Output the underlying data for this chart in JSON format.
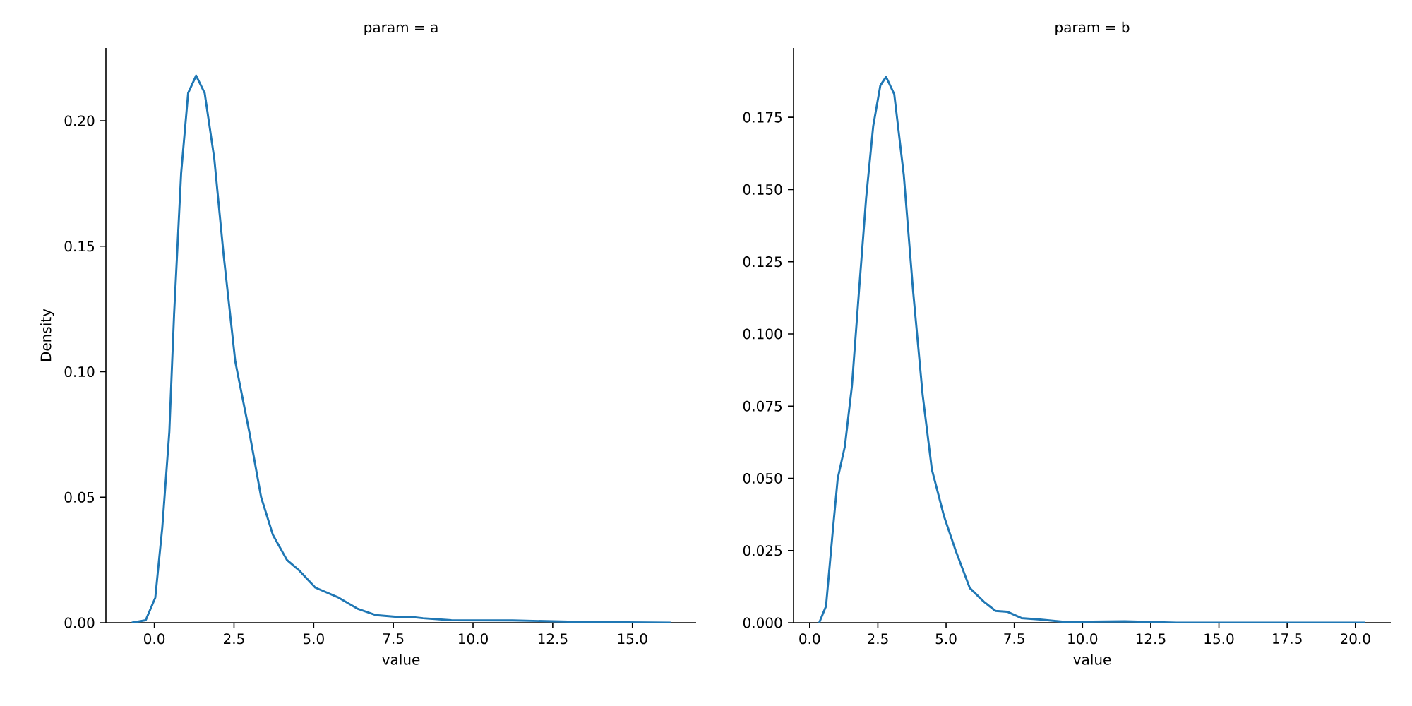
{
  "chart_data": [
    {
      "type": "line",
      "title": "param = a",
      "xlabel": "value",
      "ylabel": "Density",
      "color": "#1f77b4",
      "line_style": "solid",
      "x": [
        -0.71,
        -0.27,
        0.03,
        0.25,
        0.47,
        0.62,
        0.84,
        1.06,
        1.31,
        1.58,
        1.88,
        2.17,
        2.54,
        2.98,
        3.35,
        3.72,
        4.16,
        4.53,
        5.05,
        5.78,
        6.37,
        6.96,
        7.55,
        7.99,
        8.43,
        9.32,
        11.24,
        13.45,
        16.2
      ],
      "values": [
        0,
        0.001,
        0.01,
        0.038,
        0.076,
        0.123,
        0.179,
        0.211,
        0.218,
        0.211,
        0.185,
        0.147,
        0.104,
        0.076,
        0.05,
        0.035,
        0.025,
        0.021,
        0.014,
        0.01,
        0.0056,
        0.003,
        0.0024,
        0.0024,
        0.0018,
        0.001,
        0.0009,
        0.0003,
        0
      ],
      "xlim": [
        -1.52,
        17.0
      ],
      "ylim": [
        0,
        0.229
      ],
      "xticks": [
        {
          "value": 0,
          "label": "0.0"
        },
        {
          "value": 2.5,
          "label": "2.5"
        },
        {
          "value": 5,
          "label": "5.0"
        },
        {
          "value": 7.5,
          "label": "7.5"
        },
        {
          "value": 10,
          "label": "10.0"
        },
        {
          "value": 12.5,
          "label": "12.5"
        },
        {
          "value": 15,
          "label": "15.0"
        }
      ],
      "yticks": [
        {
          "value": 0,
          "label": "0.00"
        },
        {
          "value": 0.05,
          "label": "0.05"
        },
        {
          "value": 0.1,
          "label": "0.10"
        },
        {
          "value": 0.15,
          "label": "0.15"
        },
        {
          "value": 0.2,
          "label": "0.20"
        }
      ]
    },
    {
      "type": "line",
      "title": "param = b",
      "xlabel": "value",
      "color": "#1f77b4",
      "line_style": "solid",
      "x": [
        0.35,
        0.6,
        0.86,
        1.03,
        1.29,
        1.55,
        1.81,
        2.07,
        2.33,
        2.59,
        2.8,
        3.1,
        3.45,
        3.79,
        4.14,
        4.48,
        4.92,
        5.35,
        5.87,
        6.38,
        6.81,
        7.24,
        7.76,
        8.45,
        9.32,
        11.55,
        13.45,
        20.35
      ],
      "values": [
        0,
        0.0057,
        0.033,
        0.05,
        0.061,
        0.082,
        0.115,
        0.147,
        0.172,
        0.186,
        0.189,
        0.183,
        0.155,
        0.115,
        0.079,
        0.053,
        0.037,
        0.025,
        0.012,
        0.0073,
        0.0041,
        0.0038,
        0.0016,
        0.0011,
        0.0003,
        0.0005,
        0,
        0
      ],
      "xlim": [
        -0.59,
        21.3
      ],
      "ylim": [
        0,
        0.199
      ],
      "xticks": [
        {
          "value": 0,
          "label": "0.0"
        },
        {
          "value": 2.5,
          "label": "2.5"
        },
        {
          "value": 5,
          "label": "5.0"
        },
        {
          "value": 7.5,
          "label": "7.5"
        },
        {
          "value": 10,
          "label": "10.0"
        },
        {
          "value": 12.5,
          "label": "12.5"
        },
        {
          "value": 15,
          "label": "15.0"
        },
        {
          "value": 17.5,
          "label": "17.5"
        },
        {
          "value": 20,
          "label": "20.0"
        }
      ],
      "yticks": [
        {
          "value": 0,
          "label": "0.000"
        },
        {
          "value": 0.025,
          "label": "0.025"
        },
        {
          "value": 0.05,
          "label": "0.050"
        },
        {
          "value": 0.075,
          "label": "0.075"
        },
        {
          "value": 0.1,
          "label": "0.100"
        },
        {
          "value": 0.125,
          "label": "0.125"
        },
        {
          "value": 0.15,
          "label": "0.150"
        },
        {
          "value": 0.175,
          "label": "0.175"
        }
      ]
    }
  ]
}
